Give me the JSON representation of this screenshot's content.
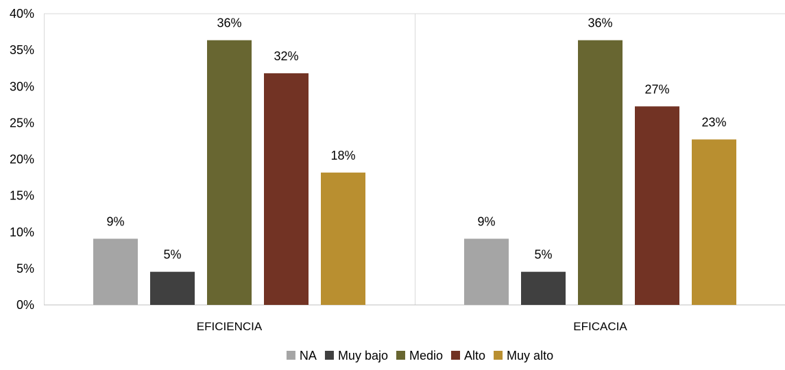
{
  "chart_data": {
    "type": "bar",
    "categories": [
      "EFICIENCIA",
      "EFICACIA"
    ],
    "series": [
      {
        "name": "NA",
        "values": [
          9.09,
          9.09
        ],
        "labels": [
          "9%",
          "9%"
        ],
        "color": "#a5a5a5"
      },
      {
        "name": "Muy bajo",
        "values": [
          4.55,
          4.55
        ],
        "labels": [
          "5%",
          "5%"
        ],
        "color": "#404040"
      },
      {
        "name": "Medio",
        "values": [
          36.36,
          36.36
        ],
        "labels": [
          "36%",
          "36%"
        ],
        "color": "#686631"
      },
      {
        "name": "Alto",
        "values": [
          31.82,
          27.27
        ],
        "labels": [
          "32%",
          "27%"
        ],
        "color": "#723324"
      },
      {
        "name": "Muy alto",
        "values": [
          18.18,
          22.73
        ],
        "labels": [
          "18%",
          "23%"
        ],
        "color": "#b98f30"
      }
    ],
    "ylim": [
      0,
      40
    ],
    "yticks": [
      0,
      5,
      10,
      15,
      20,
      25,
      30,
      35,
      40
    ],
    "ytick_labels": [
      "0%",
      "5%",
      "10%",
      "15%",
      "20%",
      "25%",
      "30%",
      "35%",
      "40%"
    ],
    "legend_position": "bottom",
    "grid": "vertical category separators",
    "title": "",
    "xlabel": "",
    "ylabel": ""
  }
}
